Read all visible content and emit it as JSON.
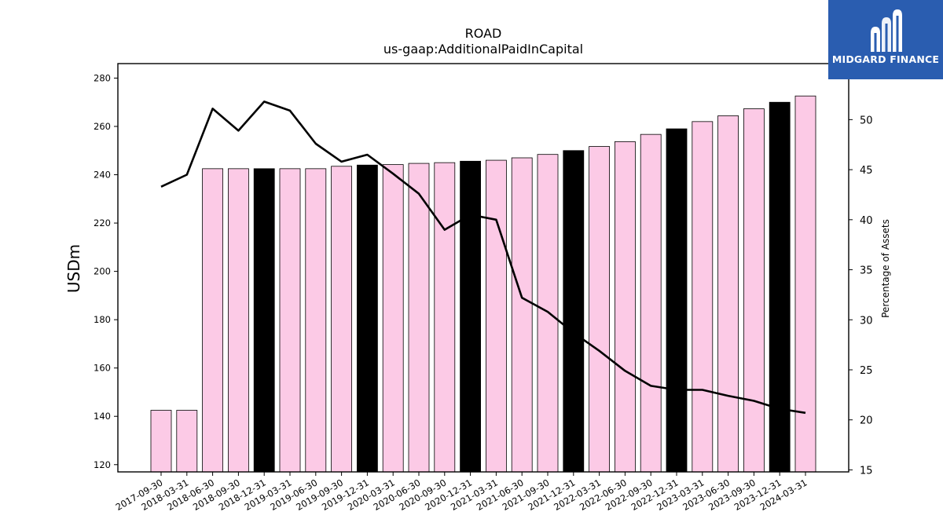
{
  "chart_data": {
    "type": "bar",
    "title": "ROAD",
    "subtitle": "us-gaap:AdditionalPaidInCapital",
    "ylabel": "USDm",
    "y2label": "Percentage of Assets",
    "ylim": [
      117,
      286
    ],
    "y2lim": [
      14.8,
      55.6
    ],
    "yticks": [
      120,
      140,
      160,
      180,
      200,
      220,
      240,
      260,
      280
    ],
    "y2ticks": [
      15,
      20,
      25,
      30,
      35,
      40,
      45,
      50
    ],
    "categories": [
      "2017-09-30",
      "2018-03-31",
      "2018-06-30",
      "2018-09-30",
      "2018-12-31",
      "2019-03-31",
      "2019-06-30",
      "2019-09-30",
      "2019-12-31",
      "2020-03-31",
      "2020-06-30",
      "2020-09-30",
      "2020-12-31",
      "2021-03-31",
      "2021-06-30",
      "2021-09-30",
      "2021-12-31",
      "2022-03-31",
      "2022-06-30",
      "2022-09-30",
      "2022-12-31",
      "2023-03-31",
      "2023-06-30",
      "2023-09-30",
      "2023-12-31",
      "2024-03-31"
    ],
    "series": [
      {
        "type": "bar",
        "values": [
          142.5,
          142.5,
          242.5,
          242.5,
          242.5,
          242.5,
          242.5,
          243.5,
          244.0,
          244.2,
          244.7,
          245.0,
          245.6,
          246.0,
          247.0,
          248.4,
          250.0,
          251.7,
          253.7,
          256.7,
          259.0,
          262.0,
          264.4,
          267.3,
          270.0,
          272.6
        ],
        "highlight": [
          false,
          false,
          false,
          false,
          true,
          false,
          false,
          false,
          true,
          false,
          false,
          false,
          true,
          false,
          false,
          false,
          true,
          false,
          false,
          false,
          true,
          false,
          false,
          false,
          true,
          false
        ]
      },
      {
        "type": "line",
        "axis": "right",
        "values": [
          43.3,
          44.5,
          51.1,
          48.9,
          51.8,
          50.9,
          47.6,
          45.8,
          46.5,
          44.6,
          42.6,
          39.0,
          40.5,
          40.0,
          32.2,
          30.8,
          28.7,
          26.9,
          24.9,
          23.4,
          23.0,
          23.0,
          22.4,
          21.9,
          21.1,
          20.7
        ]
      }
    ],
    "colors": {
      "bar": "#fccae6",
      "bar_highlight": "#000000",
      "line": "#000000"
    }
  },
  "logo": {
    "text": "MIDGARD FINANCE",
    "background": "#2a5db0"
  }
}
